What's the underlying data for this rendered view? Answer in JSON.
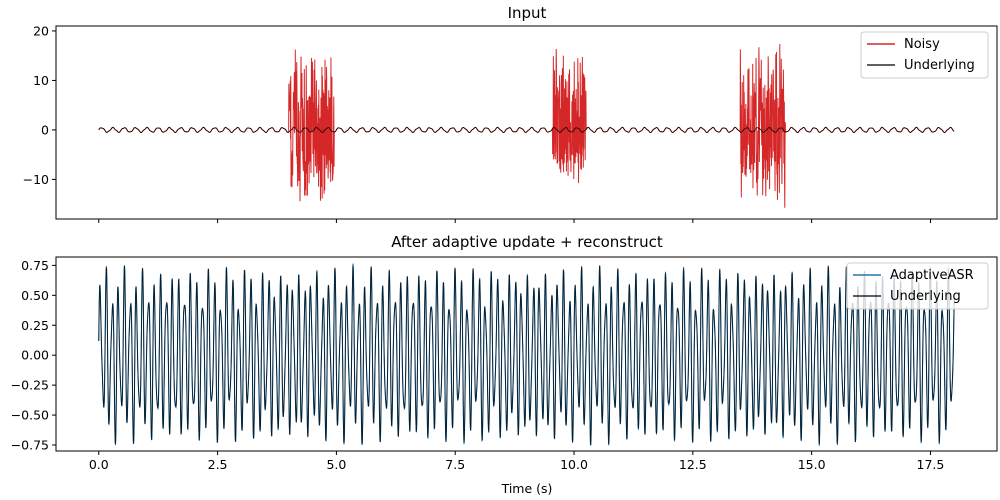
{
  "chart_data": [
    {
      "type": "line",
      "title": "Input",
      "xlabel": "",
      "ylabel": "",
      "xlim": [
        -0.9,
        18.9
      ],
      "ylim": [
        -18,
        21
      ],
      "yticks": [
        -10,
        0,
        10,
        20
      ],
      "ytick_labels": [
        "−10",
        "0",
        "10",
        "20"
      ],
      "legend_position": "top-right",
      "signal_duration_s": 18,
      "series": [
        {
          "name": "Noisy",
          "color": "#d62728",
          "baseline_amplitude": 0.5,
          "bursts": [
            {
              "start": 4.0,
              "end": 4.95,
              "min": -15.5,
              "max": 17.5
            },
            {
              "start": 9.55,
              "end": 10.25,
              "min": -11.0,
              "max": 17.0
            },
            {
              "start": 13.5,
              "end": 14.45,
              "min": -16.5,
              "max": 18.8
            }
          ]
        },
        {
          "name": "Underlying",
          "color": "#000000",
          "amplitude": 0.5
        }
      ]
    },
    {
      "type": "line",
      "title": "After adaptive update + reconstruct",
      "xlabel": "Time (s)",
      "ylabel": "",
      "xlim": [
        -0.9,
        18.9
      ],
      "ylim": [
        -0.8,
        0.82
      ],
      "yticks": [
        -0.75,
        -0.5,
        -0.25,
        0.0,
        0.25,
        0.5,
        0.75
      ],
      "ytick_labels": [
        "−0.75",
        "−0.50",
        "−0.25",
        "0.00",
        "0.25",
        "0.50",
        "0.75"
      ],
      "xticks": [
        0.0,
        2.5,
        5.0,
        7.5,
        10.0,
        12.5,
        15.0,
        17.5
      ],
      "xtick_labels": [
        "0.0",
        "2.5",
        "5.0",
        "7.5",
        "10.0",
        "12.5",
        "15.0",
        "17.5"
      ],
      "legend_position": "top-right",
      "series": [
        {
          "name": "AdaptiveASR",
          "color": "#1f77b4",
          "amplitude": 0.76
        },
        {
          "name": "Underlying",
          "color": "#000000",
          "amplitude": 0.76
        }
      ]
    }
  ]
}
